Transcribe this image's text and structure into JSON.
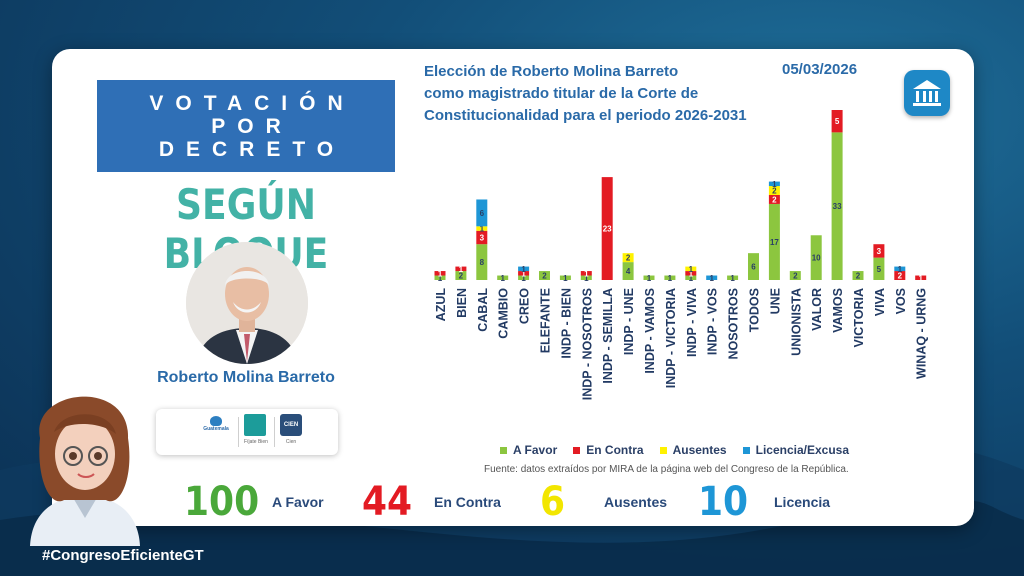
{
  "header": {
    "banner_line1": "VOTACIÓN",
    "banner_line2": "POR",
    "banner_line3": "DECRETO",
    "subtitle": "SEGÚN BLOQUE",
    "person_name": "Roberto Molina Barreto"
  },
  "logos": {
    "a_label": "Guatemala",
    "b_label": "Fíjate Bien",
    "c_label": "Cien",
    "c_text": "CIEN"
  },
  "chart_data": {
    "type": "bar",
    "stacked": true,
    "title": "Elección de Roberto Molina Barreto como magistrado titular de la Corte de Constitucionalidad para el periodo 2026-2031",
    "title_line1": "Elección de Roberto Molina Barreto",
    "title_line2": "como magistrado titular de la Corte de",
    "title_line3": "Constitucionalidad para el periodo 2026-2031",
    "date": "05/03/2026",
    "categories": [
      "AZUL",
      "BIEN",
      "CABAL",
      "CAMBIO",
      "CREO",
      "ELEFANTE",
      "INDP - BIEN",
      "INDP - NOSOTROS",
      "INDP - SEMILLA",
      "INDP - UNE",
      "INDP - VAMOS",
      "INDP - VICTORIA",
      "INDP - VIVA",
      "INDP - VOS",
      "NOSOTROS",
      "TODOS",
      "UNE",
      "UNIONISTA",
      "VALOR",
      "VAMOS",
      "VICTORIA",
      "VIVA",
      "VOS",
      "WINAQ - URNG"
    ],
    "series": [
      {
        "name": "A Favor",
        "color": "#8cc63f",
        "values": [
          1,
          2,
          8,
          1,
          1,
          2,
          1,
          1,
          0,
          4,
          1,
          1,
          1,
          0,
          1,
          6,
          17,
          2,
          10,
          33,
          2,
          5,
          0,
          0
        ]
      },
      {
        "name": "En Contra",
        "color": "#e31b23",
        "values": [
          1,
          1,
          3,
          0,
          1,
          0,
          0,
          1,
          23,
          0,
          0,
          0,
          1,
          0,
          0,
          0,
          2,
          0,
          0,
          5,
          0,
          3,
          2,
          1
        ]
      },
      {
        "name": "Ausentes",
        "color": "#fff200",
        "values": [
          0,
          0,
          1,
          0,
          0,
          0,
          0,
          0,
          0,
          2,
          0,
          0,
          1,
          0,
          0,
          0,
          2,
          0,
          0,
          0,
          0,
          0,
          0,
          0
        ]
      },
      {
        "name": "Licencia/Excusa",
        "color": "#1e96d6",
        "values": [
          0,
          0,
          6,
          0,
          1,
          0,
          0,
          0,
          0,
          0,
          0,
          0,
          0,
          1,
          0,
          0,
          1,
          0,
          0,
          0,
          0,
          0,
          1,
          0
        ]
      }
    ],
    "ylim": [
      0,
      38
    ],
    "source": "Fuente: datos extraídos por MIRA de la página web del Congreso de la República."
  },
  "totals": {
    "favor_value": "100",
    "favor_label": "A Favor",
    "contra_value": "44",
    "contra_label": "En Contra",
    "ausentes_value": "6",
    "ausentes_label": "Ausentes",
    "licencia_value": "10",
    "licencia_label": "Licencia"
  },
  "colors": {
    "favor": "#4aa83a",
    "contra": "#e31b23",
    "ausentes": "#f2e600",
    "licencia": "#1e96d6",
    "accent": "#2a6aa8"
  },
  "footer": {
    "hashtag": "#CongresoEficienteGT"
  }
}
